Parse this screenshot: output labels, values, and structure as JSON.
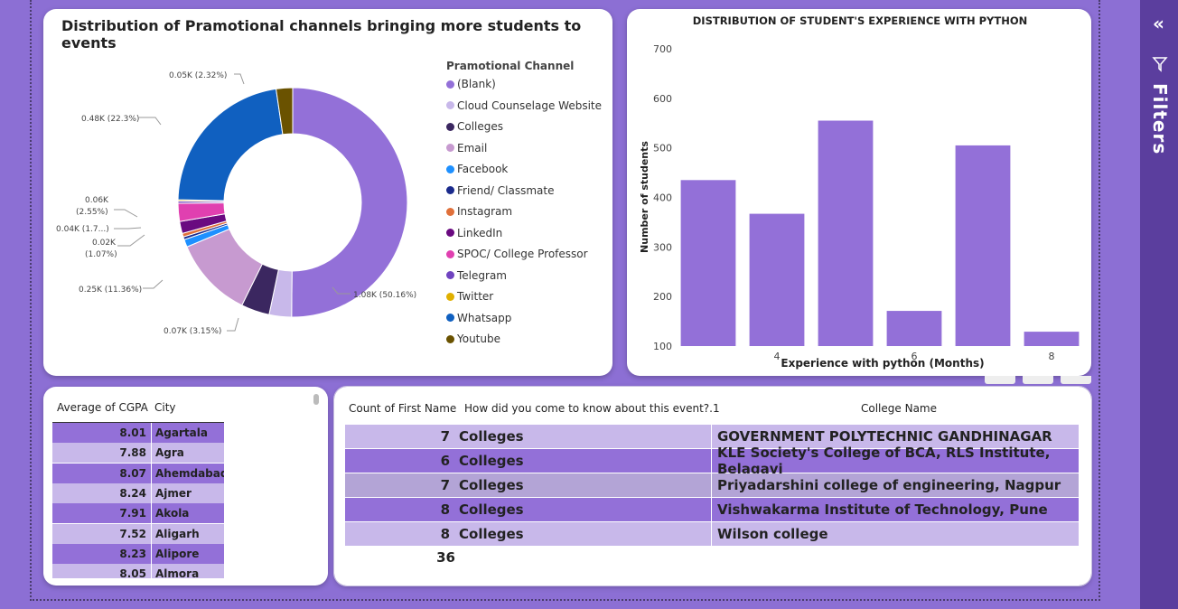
{
  "donut": {
    "title": "Distribution of Pramotional channels bringing more students to events",
    "legend_title": "Pramotional Channel",
    "legend": [
      {
        "label": "(Blank)",
        "color": "#9370D8"
      },
      {
        "label": "Cloud Counselage Website",
        "color": "#C8B8EA"
      },
      {
        "label": "Colleges",
        "color": "#3B2760"
      },
      {
        "label": "Email",
        "color": "#C79AD0"
      },
      {
        "label": "Facebook",
        "color": "#1E90FF"
      },
      {
        "label": "Friend/ Classmate",
        "color": "#1A2A8C"
      },
      {
        "label": "Instagram",
        "color": "#E0703A"
      },
      {
        "label": "LinkedIn",
        "color": "#6A0A80"
      },
      {
        "label": "SPOC/ College Professor",
        "color": "#E040B0"
      },
      {
        "label": "Telegram",
        "color": "#7044C0"
      },
      {
        "label": "Twitter",
        "color": "#E0B000"
      },
      {
        "label": "Whatsapp",
        "color": "#1060C0"
      },
      {
        "label": "Youtube",
        "color": "#6A5200"
      }
    ],
    "labels": {
      "youtube": "0.05K (2.32%)",
      "whatsapp": "0.48K (22.3%)",
      "spoc_a": "0.06K",
      "spoc_b": "(2.55%)",
      "linkedin": "0.04K (1.7...)",
      "facebook_a": "0.02K",
      "facebook_b": "(1.07%)",
      "email": "0.25K (11.36%)",
      "cloud": "0.07K (3.15%)",
      "blank": "1.08K (50.16%)"
    }
  },
  "chart_data": [
    {
      "type": "pie",
      "categories": [
        "(Blank)",
        "Cloud Counselage Website",
        "Colleges",
        "Email",
        "Facebook",
        "Friend/ Classmate",
        "Instagram",
        "LinkedIn",
        "SPOC/ College Professor",
        "Telegram",
        "Twitter",
        "Whatsapp",
        "Youtube"
      ],
      "values": [
        50.16,
        3.15,
        4.0,
        11.36,
        1.07,
        0.4,
        0.5,
        1.7,
        2.55,
        0.3,
        0.2,
        22.3,
        2.32
      ],
      "title": "Distribution of Pramotional channels bringing more students to events",
      "legend": "right"
    },
    {
      "type": "bar",
      "title": "DISTRIBUTION OF STUDENT'S EXPERIENCE WITH PYTHON",
      "xlabel": "Experience with python (Months)",
      "ylabel": "Number of students",
      "x": [
        3,
        4,
        5,
        6,
        7,
        8
      ],
      "values": [
        435,
        367,
        555,
        171,
        505,
        129
      ],
      "ylim": [
        100,
        700
      ],
      "yticks": [
        "100",
        "200",
        "300",
        "400",
        "500",
        "600",
        "700"
      ],
      "xticks": [
        {
          "value": 4,
          "label": "4"
        },
        {
          "value": 6,
          "label": "6"
        },
        {
          "value": 8,
          "label": "8"
        }
      ]
    }
  ],
  "city_table": {
    "headers": [
      "Average of CGPA",
      "City"
    ],
    "rows": [
      {
        "cgpa": "8.01",
        "city": "Agartala"
      },
      {
        "cgpa": "7.88",
        "city": "Agra"
      },
      {
        "cgpa": "8.07",
        "city": "Ahemdabad"
      },
      {
        "cgpa": "8.24",
        "city": "Ajmer"
      },
      {
        "cgpa": "7.91",
        "city": "Akola"
      },
      {
        "cgpa": "7.52",
        "city": "Aligarh"
      },
      {
        "cgpa": "8.23",
        "city": "Alipore"
      },
      {
        "cgpa": "8.05",
        "city": "Almora"
      }
    ]
  },
  "college_table": {
    "headers": [
      "Count of First Name",
      "How did you come to know about this event?.1",
      "College Name"
    ],
    "rows": [
      {
        "count": "7",
        "source": "Colleges",
        "college": "GOVERNMENT POLYTECHNIC GANDHINAGAR"
      },
      {
        "count": "6",
        "source": "Colleges",
        "college": "KLE Society's College of BCA, RLS Institute, Belagavi"
      },
      {
        "count": "7",
        "source": "Colleges",
        "college": "Priyadarshini college of engineering, Nagpur"
      },
      {
        "count": "8",
        "source": "Colleges",
        "college": "Vishwakarma Institute of Technology, Pune"
      },
      {
        "count": "8",
        "source": "Colleges",
        "college": "Wilson college"
      }
    ],
    "total": "36"
  },
  "filters_pane": {
    "label": "Filters"
  },
  "colors": {
    "accent": "#8C6FD4",
    "bar": "#9370D8",
    "row_dark": "#9370D8",
    "row_light": "#C8B8EA",
    "row_selected": "#B3A4D6",
    "pane": "#5B3E9E"
  }
}
